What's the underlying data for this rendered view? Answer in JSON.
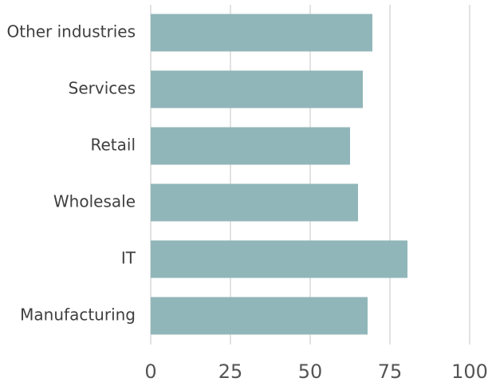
{
  "chart_data": {
    "type": "bar",
    "orientation": "horizontal",
    "categories": [
      "Other industries",
      "Services",
      "Retail",
      "Wholesale",
      "IT",
      "Manufacturing"
    ],
    "values": [
      69.5,
      66.5,
      62.5,
      65,
      80.5,
      68
    ],
    "title": "",
    "xlabel": "",
    "ylabel": "",
    "xlim": [
      0,
      100
    ],
    "xticks": [
      "0",
      "25",
      "50",
      "75",
      "100"
    ],
    "grid": true,
    "legend": "none",
    "bar_color": "#91b6b9",
    "grid_color": "#d9d9d9",
    "text_color": "#3f3f3f"
  }
}
